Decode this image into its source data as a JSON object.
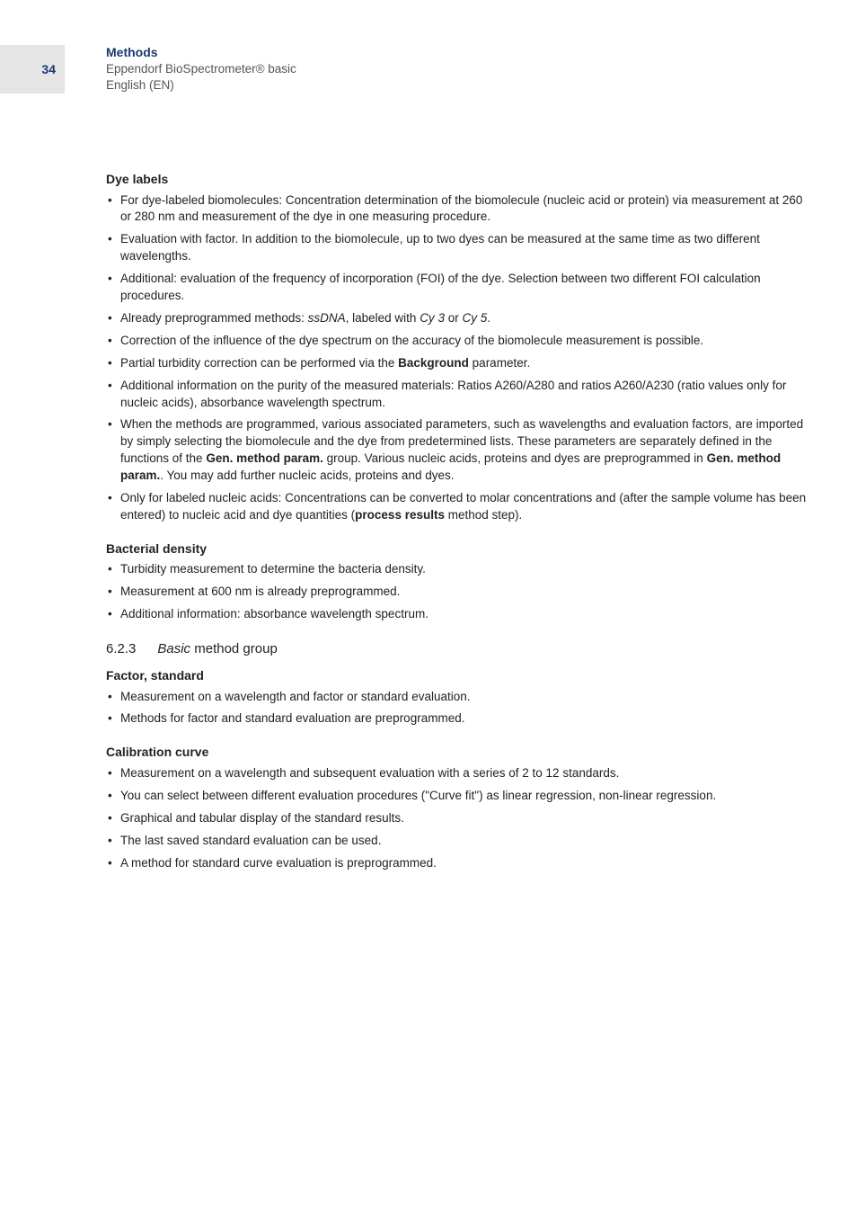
{
  "page_number": "34",
  "header": {
    "title": "Methods",
    "product": "Eppendorf BioSpectrometer® basic",
    "language": "English (EN)"
  },
  "sections": [
    {
      "heading": "Dye labels",
      "items": [
        [
          {
            "t": "For dye-labeled biomolecules: Concentration determination of the biomolecule (nucleic acid or protein) via measurement at 260 or 280 nm and measurement of the dye in one measuring procedure."
          }
        ],
        [
          {
            "t": "Evaluation with factor. In addition to the biomolecule, up to two dyes can be measured at the same time as two different wavelengths."
          }
        ],
        [
          {
            "t": "Additional: evaluation of the frequency of incorporation (FOI) of the dye. Selection between two different FOI calculation procedures."
          }
        ],
        [
          {
            "t": "Already preprogrammed methods: "
          },
          {
            "t": "ssDNA",
            "i": true
          },
          {
            "t": ", labeled with "
          },
          {
            "t": "Cy 3",
            "i": true
          },
          {
            "t": " or "
          },
          {
            "t": "Cy 5",
            "i": true
          },
          {
            "t": "."
          }
        ],
        [
          {
            "t": "Correction of the influence of the dye spectrum on the accuracy of the biomolecule measurement is possible."
          }
        ],
        [
          {
            "t": "Partial turbidity correction can be performed via the "
          },
          {
            "t": "Background",
            "b": true
          },
          {
            "t": " parameter."
          }
        ],
        [
          {
            "t": "Additional information on the purity of the measured materials: Ratios A260/A280 and ratios A260/A230 (ratio values only for nucleic acids), absorbance wavelength spectrum."
          }
        ],
        [
          {
            "t": "When the methods are programmed, various associated parameters, such as wavelengths and evaluation factors, are imported by simply selecting the biomolecule and the dye from predetermined lists. These parameters are separately defined in the functions of the "
          },
          {
            "t": "Gen. method param.",
            "b": true
          },
          {
            "t": " group. Various nucleic acids, proteins and dyes are preprogrammed in  "
          },
          {
            "t": "Gen. method param.",
            "b": true
          },
          {
            "t": ". You may add further nucleic acids, proteins and dyes."
          }
        ],
        [
          {
            "t": "Only for labeled nucleic acids: Concentrations can be converted to molar concentrations and (after the sample volume has been entered) to nucleic acid and dye quantities ("
          },
          {
            "t": "process results",
            "b": true
          },
          {
            "t": " method step)."
          }
        ]
      ]
    },
    {
      "heading": "Bacterial density",
      "items": [
        [
          {
            "t": "Turbidity measurement to determine the bacteria density."
          }
        ],
        [
          {
            "t": "Measurement at 600 nm is already preprogrammed."
          }
        ],
        [
          {
            "t": "Additional information: absorbance wavelength spectrum."
          }
        ]
      ]
    }
  ],
  "subsection": {
    "number": "6.2.3",
    "title_italic": "Basic",
    "title_rest": " method group"
  },
  "sections2": [
    {
      "heading": "Factor, standard",
      "items": [
        [
          {
            "t": "Measurement on a wavelength and factor or standard evaluation."
          }
        ],
        [
          {
            "t": "Methods for factor and standard evaluation are preprogrammed."
          }
        ]
      ]
    },
    {
      "heading": "Calibration curve",
      "items": [
        [
          {
            "t": "Measurement on a wavelength and subsequent evaluation with a series of 2 to 12 standards."
          }
        ],
        [
          {
            "t": "You can select between different evaluation procedures (\"Curve fit\") as linear regression, non-linear regression."
          }
        ],
        [
          {
            "t": "Graphical and tabular display of the standard results."
          }
        ],
        [
          {
            "t": "The last saved standard evaluation can be used."
          }
        ],
        [
          {
            "t": "A method for standard curve evaluation is preprogrammed."
          }
        ]
      ]
    }
  ]
}
